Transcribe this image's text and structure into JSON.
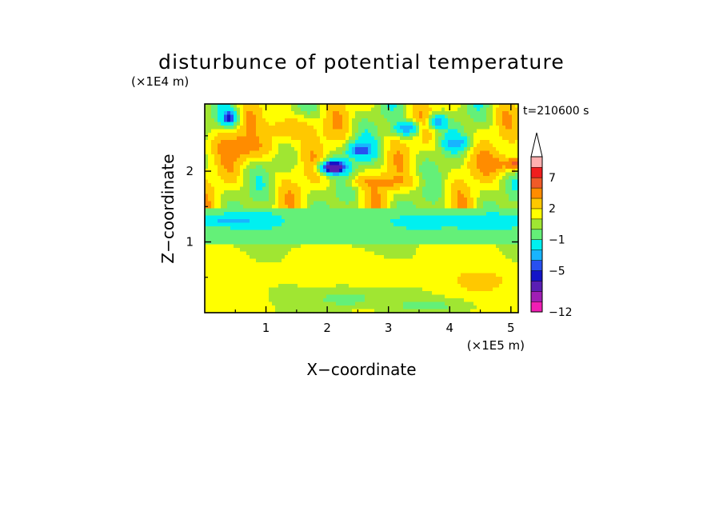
{
  "chart_data": {
    "type": "heatmap",
    "title": "disturbunce of potential temperature",
    "time_label": "t=210600 s",
    "xlabel": "X−coordinate",
    "ylabel": "Z−coordinate",
    "x_unit": "(×1E5 m)",
    "y_unit": "(×1E4 m)",
    "xlim": [
      0,
      5.12
    ],
    "ylim": [
      0,
      2.95
    ],
    "x_ticks": [
      1,
      2,
      3,
      4,
      5
    ],
    "x_tick_labels": [
      "1",
      "2",
      "3",
      "4",
      "5"
    ],
    "y_ticks": [
      1,
      2
    ],
    "y_tick_labels": [
      "1",
      "2"
    ],
    "colorbar": {
      "levels": [
        -12,
        -10,
        -8,
        -6,
        -5,
        -4,
        -3,
        -1,
        0,
        1,
        2,
        3,
        5,
        7,
        9,
        11
      ],
      "tick_labels": [
        "−12",
        "−5",
        "−1",
        "2",
        "7"
      ],
      "tick_values": [
        -12,
        -5,
        -1,
        2,
        7
      ],
      "colors": [
        "#f01eb4",
        "#a01eb4",
        "#5a1eb4",
        "#1414c8",
        "#2850f0",
        "#18b4ff",
        "#00f0f0",
        "#64f078",
        "#a0e632",
        "#ffff00",
        "#ffc800",
        "#ff8c00",
        "#f05a28",
        "#f01e1e",
        "#ffafaf"
      ],
      "extend_max": true
    },
    "features": [
      {
        "x": 0.4,
        "z": 2.75,
        "dx": 0.13,
        "dz": 0.12,
        "value": -6
      },
      {
        "x": 2.1,
        "z": 2.05,
        "dx": 0.22,
        "dz": 0.1,
        "value": -8
      },
      {
        "x": 2.55,
        "z": 2.3,
        "dx": 0.22,
        "dz": 0.12,
        "value": -5
      },
      {
        "x": 3.3,
        "z": 2.6,
        "dx": 0.2,
        "dz": 0.1,
        "value": -4
      },
      {
        "x": 3.8,
        "z": 2.7,
        "dx": 0.13,
        "dz": 0.1,
        "value": -4
      },
      {
        "x": 4.1,
        "z": 2.4,
        "dx": 0.2,
        "dz": 0.1,
        "value": -4
      },
      {
        "x": 0.5,
        "z": 1.3,
        "dx": 0.55,
        "dz": 0.08,
        "value": -4
      },
      {
        "x": 4.25,
        "z": 1.28,
        "dx": 0.9,
        "dz": 0.07,
        "value": -4
      },
      {
        "x": 2.1,
        "z": 1.15,
        "dx": 1.4,
        "dz": 0.16,
        "value": -1
      },
      {
        "x": 4.0,
        "z": 1.2,
        "dx": 1.0,
        "dz": 0.12,
        "value": -1
      },
      {
        "x": 0.6,
        "z": 2.35,
        "dx": 0.6,
        "dz": 0.22,
        "value": 3.5
      },
      {
        "x": 1.4,
        "z": 2.6,
        "dx": 0.5,
        "dz": 0.2,
        "value": 3.0
      },
      {
        "x": 2.9,
        "z": 1.85,
        "dx": 0.55,
        "dz": 0.1,
        "value": 3.5
      },
      {
        "x": 4.7,
        "z": 2.1,
        "dx": 0.4,
        "dz": 0.15,
        "value": 3.5
      },
      {
        "x": 5.05,
        "z": 2.1,
        "dx": 0.1,
        "dz": 0.08,
        "value": 6
      },
      {
        "x": 2.5,
        "z": 0.55,
        "dx": 2.5,
        "dz": 0.25,
        "value": 1.3
      },
      {
        "x": 4.5,
        "z": 0.45,
        "dx": 0.6,
        "dz": 0.2,
        "value": 2.3
      },
      {
        "x": 2.3,
        "z": 0.2,
        "dx": 0.6,
        "dz": 0.15,
        "value": -0.5
      },
      {
        "x": 3.6,
        "z": 0.1,
        "dx": 0.8,
        "dz": 0.1,
        "value": -0.3
      }
    ]
  }
}
